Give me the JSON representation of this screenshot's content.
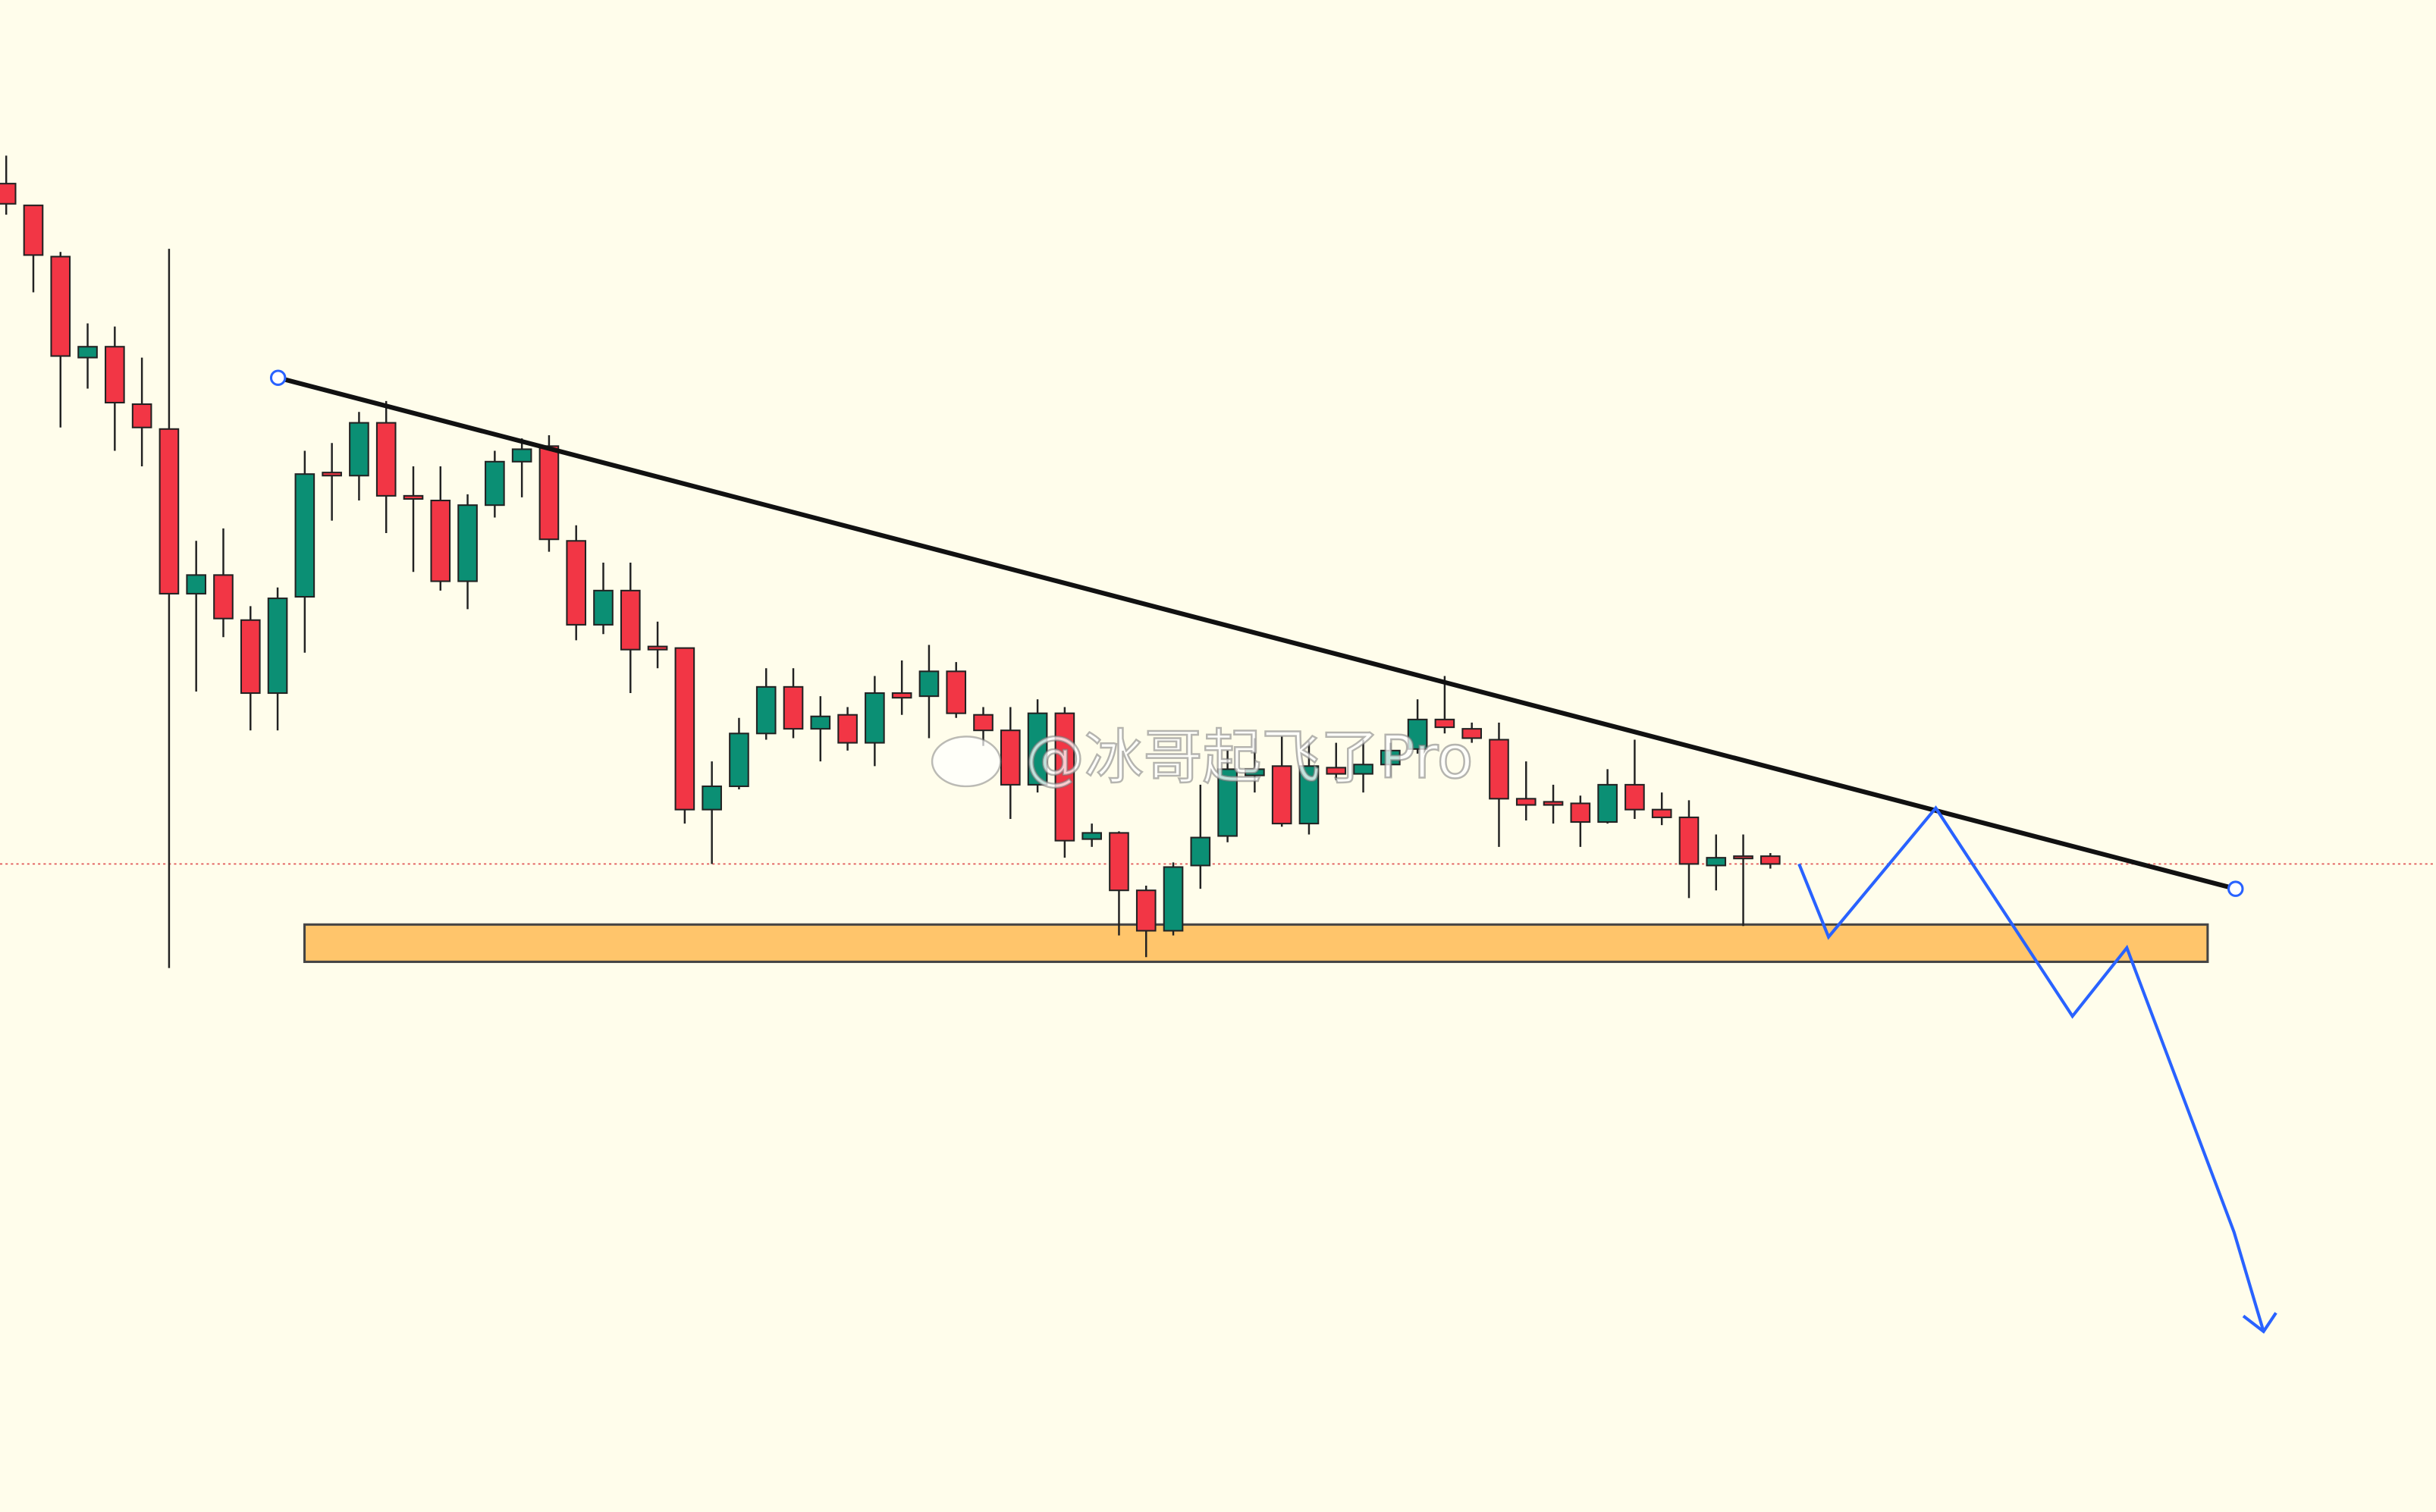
{
  "chart_data": {
    "type": "candlestick",
    "watermark": "@冰哥起飞了Pro",
    "ylim": [
      0,
      973
    ],
    "up_color": "#0b8f74",
    "down_color": "#f23645",
    "series": [
      {
        "open": [
          855,
          841,
          808,
          743,
          750,
          713,
          697,
          591,
          603,
          574,
          527,
          589,
          669,
          667,
          701,
          654,
          651,
          599,
          648,
          676,
          686,
          625,
          571,
          593,
          557,
          556,
          452,
          467,
          501,
          531,
          504,
          513,
          495,
          527,
          525,
          541,
          513,
          503,
          468,
          514,
          433,
          437,
          400,
          374,
          416,
          435,
          474,
          480,
          443,
          479,
          475,
          481,
          491,
          510,
          504,
          497,
          459,
          457,
          456,
          444,
          468,
          452,
          447,
          416,
          422,
          422
        ],
        "high": [
          873,
          841,
          811,
          765,
          763,
          743,
          813,
          625,
          633,
          583,
          595,
          683,
          688,
          708,
          715,
          673,
          673,
          655,
          683,
          691,
          693,
          635,
          611,
          611,
          573,
          556,
          483,
          511,
          543,
          543,
          525,
          518,
          538,
          548,
          558,
          547,
          518,
          518,
          523,
          518,
          443,
          438,
          403,
          418,
          468,
          490,
          498,
          499,
          496,
          495,
          497,
          495,
          523,
          538,
          508,
          508,
          483,
          468,
          461,
          478,
          497,
          463,
          458,
          436,
          436,
          424
        ],
        "low": [
          835,
          785,
          698,
          723,
          683,
          673,
          350,
          528,
          563,
          503,
          503,
          553,
          638,
          651,
          630,
          605,
          593,
          581,
          640,
          653,
          618,
          561,
          565,
          527,
          543,
          443,
          417,
          465,
          497,
          498,
          483,
          490,
          480,
          513,
          498,
          511,
          493,
          446,
          463,
          421,
          428,
          371,
          357,
          371,
          401,
          431,
          463,
          441,
          436,
          471,
          463,
          473,
          488,
          501,
          495,
          428,
          445,
          443,
          428,
          443,
          446,
          442,
          395,
          400,
          377,
          414
        ],
        "close": [
          842,
          809,
          744,
          750,
          714,
          698,
          591,
          603,
          575,
          527,
          588,
          668,
          667,
          701,
          654,
          652,
          599,
          648,
          676,
          684,
          626,
          571,
          593,
          555,
          555,
          452,
          467,
          501,
          531,
          504,
          512,
          495,
          527,
          524,
          541,
          514,
          503,
          468,
          514,
          432,
          437,
          400,
          374,
          415,
          434,
          478,
          478,
          443,
          480,
          475,
          481,
          490,
          510,
          505,
          498,
          459,
          455,
          455,
          444,
          468,
          452,
          447,
          417,
          421,
          421,
          417
        ]
      }
    ]
  }
}
